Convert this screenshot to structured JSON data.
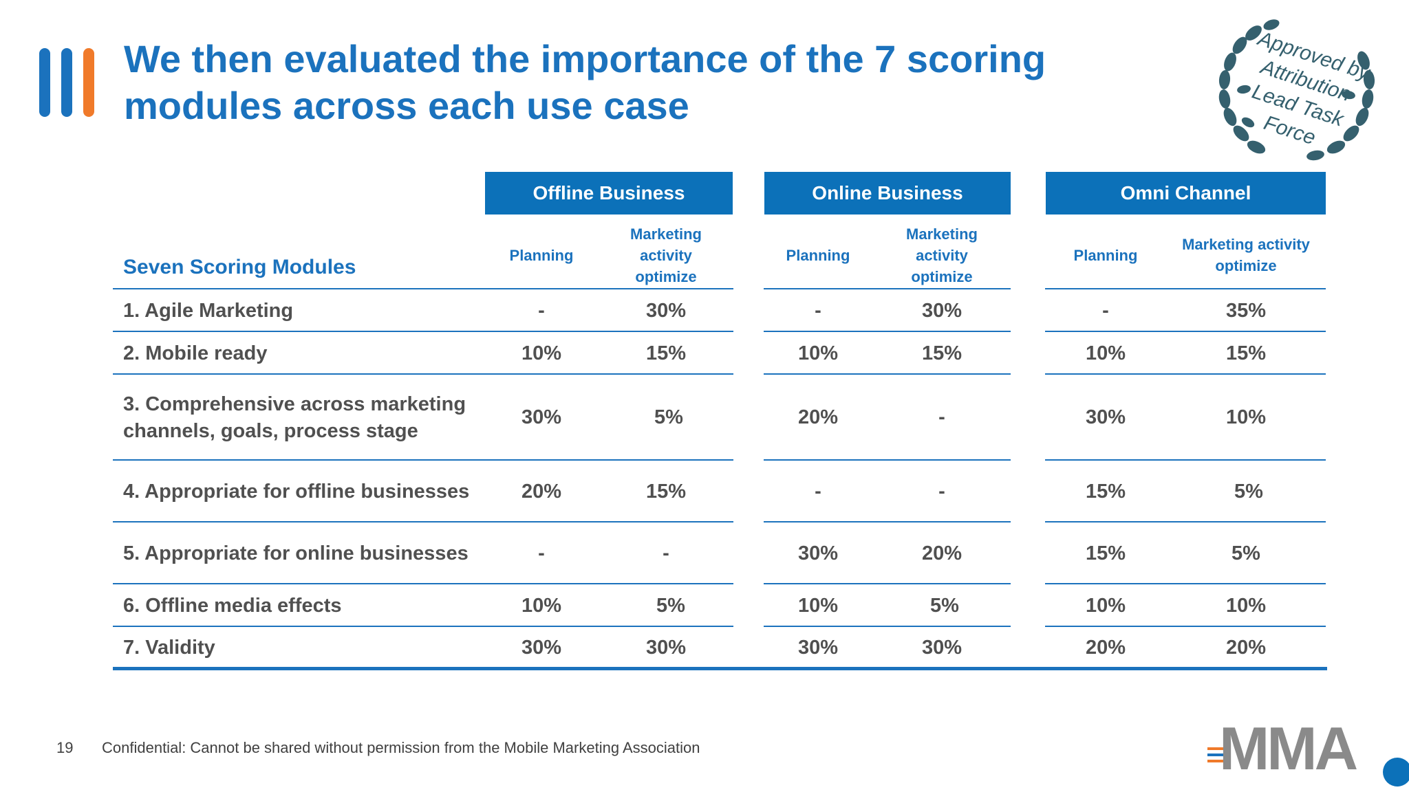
{
  "page": {
    "title": "We then evaluated the importance of the 7 scoring modules across each use case",
    "number": "19",
    "footer": "Confidential: Cannot be shared without permission from the Mobile Marketing Association"
  },
  "seal": {
    "text": "Approved by Attribution Lead Task Force"
  },
  "logo": {
    "text": "MMA"
  },
  "table": {
    "row_header": "Seven Scoring Modules",
    "groups": [
      {
        "name": "Offline Business",
        "planning": "Planning",
        "optimize": "Marketing activity optimize"
      },
      {
        "name": "Online Business",
        "planning": "Planning",
        "optimize": "Marketing activity optimize"
      },
      {
        "name": "Omni Channel",
        "planning": "Planning",
        "optimize": "Marketing activity optimize"
      }
    ],
    "rows": [
      {
        "label": "1. Agile Marketing",
        "values": [
          "-",
          "30%",
          "-",
          "30%",
          "-",
          "35%"
        ]
      },
      {
        "label": "2. Mobile ready",
        "values": [
          "10%",
          "15%",
          "10%",
          "15%",
          "10%",
          "15%"
        ]
      },
      {
        "label": "3. Comprehensive across marketing channels, goals, process stage",
        "values": [
          "30%",
          "5%",
          "20%",
          "-",
          "30%",
          "10%"
        ]
      },
      {
        "label": "4. Appropriate for offline businesses",
        "values": [
          "20%",
          "15%",
          "-",
          "-",
          "15%",
          "5%"
        ]
      },
      {
        "label": "5. Appropriate for online businesses",
        "values": [
          "-",
          "-",
          "30%",
          "20%",
          "15%",
          "5%"
        ]
      },
      {
        "label": "6. Offline media effects",
        "values": [
          "10%",
          "5%",
          "10%",
          "5%",
          "10%",
          "10%"
        ]
      },
      {
        "label": "7. Validity",
        "values": [
          "30%",
          "30%",
          "30%",
          "30%",
          "20%",
          "20%"
        ]
      }
    ]
  },
  "colors": {
    "brand_blue": "#1b72bd",
    "header_blue": "#0c71b9",
    "accent_orange": "#f07a2a"
  }
}
